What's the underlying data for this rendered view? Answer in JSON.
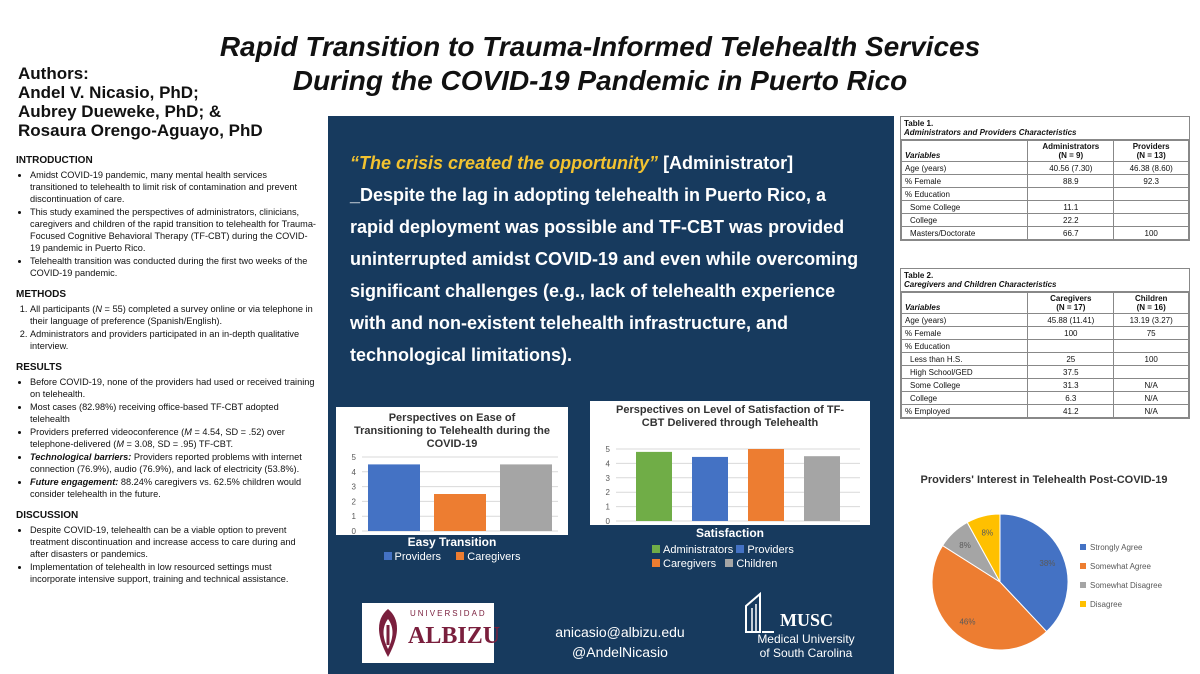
{
  "title": {
    "line1": "Rapid Transition to Trauma-Informed Telehealth Services",
    "line2": "During the COVID-19 Pandemic in Puerto Rico"
  },
  "authors": {
    "label": "Authors:",
    "names": [
      "Andel V. Nicasio, PhD;",
      "Aubrey Dueweke, PhD; &",
      "Rosaura Orengo-Aguayo, PhD"
    ]
  },
  "introduction": {
    "heading": "INTRODUCTION",
    "items": [
      "Amidst COVID-19 pandemic, many mental health services transitioned to telehealth to limit risk of contamination and prevent discontinuation of care.",
      "This study examined the perspectives of administrators, clinicians, caregivers and children of the rapid transition to telehealth for Trauma-Focused Cognitive Behavioral Therapy (TF-CBT) during the COVID-19 pandemic in Puerto Rico.",
      "Telehealth transition was conducted during the first two weeks of the COVID-19 pandemic."
    ]
  },
  "methods": {
    "heading": "METHODS",
    "item1_pre": "All participants (",
    "item1_n": "N",
    "item1_post": " = 55) completed a survey online or via telephone in their language of preference (Spanish/English).",
    "item2": "Administrators and providers participated in an in-depth qualitative interview."
  },
  "results": {
    "heading": "RESULTS",
    "r1": "Before COVID-19, none of the providers had used or received training on telehealth.",
    "r2": "Most cases (82.98%) receiving office-based TF-CBT adopted telehealth",
    "r3_a": "Providers preferred videoconference (",
    "r3_m1": "M",
    "r3_b": " = 4.54, SD = .52) over telephone-delivered (",
    "r3_m2": "M",
    "r3_c": " = 3.08, SD = .95) TF-CBT.",
    "r4_label": "Technological barriers:",
    "r4_text": " Providers reported problems with internet connection (76.9%), audio (76.9%), and lack of electricity (53.8%).",
    "r5_label": "Future engagement:",
    "r5_text": " 88.24% caregivers vs. 62.5% children would consider telehealth in the future."
  },
  "discussion": {
    "heading": "DISCUSSION",
    "items": [
      "Despite COVID-19, telehealth can be a viable option to prevent treatment discontinuation and increase access to care during and after disasters or pandemics.",
      "Implementation of telehealth in low resourced settings must incorporate intensive support, training and technical assistance."
    ]
  },
  "quote": {
    "quote_text": "“The crisis created the opportunity”",
    "attribution": " [Administrator]",
    "body": "_Despite the lag in adopting telehealth in Puerto Rico, a rapid deployment was possible and TF-CBT was provided uninterrupted amidst COVID-19 and even while overcoming significant challenges (e.g., lack of telehealth experience with and non-existent telehealth infrastructure, and technological limitations)."
  },
  "contact": {
    "email": "anicasio@albizu.edu",
    "handle": "@AndelNicasio"
  },
  "logos": {
    "albizu_top": "UNIVERSIDAD",
    "albizu_name": "ALBIZU",
    "musc_name": "MUSC",
    "musc_sub1": "Medical University",
    "musc_sub2": "of South Carolina"
  },
  "colors": {
    "blue": "#4472c4",
    "orange": "#ed7d31",
    "gray": "#a5a5a5",
    "green": "#70ad47",
    "yellow": "#ffc000",
    "panel": "#173a5e"
  },
  "chart_data": [
    {
      "type": "bar",
      "title": "Perspectives on Ease of Transitioning to Telehealth during the COVID-19",
      "categories": [
        "Easy Transition"
      ],
      "series": [
        {
          "name": "Providers",
          "values": [
            4.5
          ]
        },
        {
          "name": "Caregivers",
          "values": [
            2.5
          ]
        },
        {
          "name": "",
          "values": [
            4.5
          ]
        }
      ],
      "legend": [
        "Providers",
        "Caregivers"
      ],
      "ylim": [
        0,
        5
      ],
      "yticks": [
        "0",
        "1",
        "2",
        "3",
        "4",
        "5"
      ],
      "legend_placement": "bottom"
    },
    {
      "type": "bar",
      "title": "Perspectives on Level of Satisfaction of TF-CBT Delivered through Telehealth",
      "categories": [
        "Satisfaction"
      ],
      "series": [
        {
          "name": "Administrators",
          "values": [
            4.8
          ]
        },
        {
          "name": "Providers",
          "values": [
            4.45
          ]
        },
        {
          "name": "Caregivers",
          "values": [
            5.0
          ]
        },
        {
          "name": "Children",
          "values": [
            4.5
          ]
        }
      ],
      "ylim": [
        0,
        5
      ],
      "yticks": [
        "0",
        "1",
        "2",
        "3",
        "4",
        "5"
      ],
      "legend_placement": "bottom"
    },
    {
      "type": "pie",
      "title": "Providers' Interest in Telehealth Post-COVID-19",
      "slices": [
        {
          "name": "Strongly Agree",
          "value": 38,
          "label": "38%"
        },
        {
          "name": "Somewhat Agree",
          "value": 46,
          "label": "46%"
        },
        {
          "name": "Somewhat Disagree",
          "value": 8,
          "label": "8%"
        },
        {
          "name": "Disagree",
          "value": 8,
          "label": "8%"
        }
      ],
      "legend_placement": "right"
    }
  ],
  "table1": {
    "label": "Table 1.",
    "caption": "Administrators and Providers Characteristics",
    "h_var": "Variables",
    "h_c1": "Administrators",
    "h_c1n": "(N = 9)",
    "h_c2": "Providers",
    "h_c2n": "(N = 13)",
    "rows": [
      {
        "v": "Age (years)",
        "a": "40.56 (7.30)",
        "b": "46.38 (8.60)",
        "indent": false
      },
      {
        "v": "% Female",
        "a": "88.9",
        "b": "92.3",
        "indent": false
      },
      {
        "v": "% Education",
        "a": "",
        "b": "",
        "indent": false
      },
      {
        "v": "Some College",
        "a": "11.1",
        "b": "",
        "indent": true
      },
      {
        "v": "College",
        "a": "22.2",
        "b": "",
        "indent": true
      },
      {
        "v": "Masters/Doctorate",
        "a": "66.7",
        "b": "100",
        "indent": true
      }
    ]
  },
  "table2": {
    "label": "Table 2.",
    "caption": "Caregivers and Children Characteristics",
    "h_var": "Variables",
    "h_c1": "Caregivers",
    "h_c1n": "(N = 17)",
    "h_c2": "Children",
    "h_c2n": "(N = 16)",
    "rows": [
      {
        "v": "Age (years)",
        "a": "45.88 (11.41)",
        "b": "13.19 (3.27)",
        "indent": false
      },
      {
        "v": "% Female",
        "a": "100",
        "b": "75",
        "indent": false
      },
      {
        "v": "% Education",
        "a": "",
        "b": "",
        "indent": false
      },
      {
        "v": "Less than H.S.",
        "a": "25",
        "b": "100",
        "indent": true
      },
      {
        "v": "High School/GED",
        "a": "37.5",
        "b": "",
        "indent": true
      },
      {
        "v": "Some College",
        "a": "31.3",
        "b": "N/A",
        "indent": true
      },
      {
        "v": "College",
        "a": "6.3",
        "b": "N/A",
        "indent": true
      },
      {
        "v": "% Employed",
        "a": "41.2",
        "b": "N/A",
        "indent": false
      }
    ]
  }
}
